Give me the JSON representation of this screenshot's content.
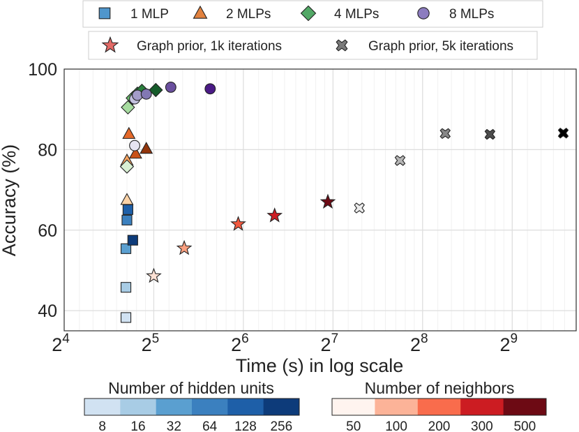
{
  "chart_data": {
    "type": "scatter",
    "xscale": "log2",
    "xlabel": "Time (s) in log scale",
    "ylabel": "Accuracy (%)",
    "xlim": [
      16,
      840
    ],
    "ylim": [
      35,
      100
    ],
    "grid": true,
    "x_ticks": [
      {
        "value": 16,
        "base": "2",
        "exp": "4"
      },
      {
        "value": 32,
        "base": "2",
        "exp": "5"
      },
      {
        "value": 64,
        "base": "2",
        "exp": "6"
      },
      {
        "value": 128,
        "base": "2",
        "exp": "7"
      },
      {
        "value": 256,
        "base": "2",
        "exp": "8"
      },
      {
        "value": 512,
        "base": "2",
        "exp": "9"
      }
    ],
    "y_ticks": [
      {
        "value": 40,
        "label": "40"
      },
      {
        "value": 60,
        "label": "60"
      },
      {
        "value": 80,
        "label": "80"
      },
      {
        "value": 100,
        "label": "100"
      }
    ],
    "legend": {
      "row1": [
        {
          "label": "1 MLP",
          "marker": "square",
          "color": "#4f96cc"
        },
        {
          "label": "2 MLPs",
          "marker": "triangle",
          "color": "#e2823f"
        },
        {
          "label": "4 MLPs",
          "marker": "diamond",
          "color": "#52a866"
        },
        {
          "label": "8 MLPs",
          "marker": "circle",
          "color": "#8c7cbf"
        }
      ],
      "row2": [
        {
          "label": "Graph prior, 1k iterations",
          "marker": "star",
          "color": "#e36a66"
        },
        {
          "label": "Graph prior, 5k iterations",
          "marker": "cross",
          "color": "#7a7a7a"
        }
      ]
    },
    "series": [
      {
        "name": "1 MLP",
        "marker": "square",
        "points": [
          {
            "x": 25.8,
            "y": 38.3,
            "c": "#d1e2f2"
          },
          {
            "x": 25.8,
            "y": 45.8,
            "c": "#a8cce5"
          },
          {
            "x": 25.8,
            "y": 55.4,
            "c": "#5a9fd0"
          },
          {
            "x": 26.0,
            "y": 62.5,
            "c": "#3b80bf"
          },
          {
            "x": 26.2,
            "y": 65.1,
            "c": "#1e5fa8"
          },
          {
            "x": 27.2,
            "y": 57.5,
            "c": "#0d3b7a"
          }
        ]
      },
      {
        "name": "2 MLPs",
        "marker": "triangle",
        "points": [
          {
            "x": 26.0,
            "y": 67.5,
            "c": "#fdd3a7"
          },
          {
            "x": 26.0,
            "y": 77.3,
            "c": "#f5a35f"
          },
          {
            "x": 26.4,
            "y": 83.9,
            "c": "#e5692a"
          },
          {
            "x": 27.8,
            "y": 79.0,
            "c": "#c95218"
          },
          {
            "x": 30.2,
            "y": 80.2,
            "c": "#93360c"
          }
        ]
      },
      {
        "name": "4 MLPs",
        "marker": "diamond",
        "points": [
          {
            "x": 26.0,
            "y": 75.8,
            "c": "#d9f0d3"
          },
          {
            "x": 26.2,
            "y": 90.5,
            "c": "#a7dca0"
          },
          {
            "x": 27.2,
            "y": 92.8,
            "c": "#6cbd6e"
          },
          {
            "x": 28.2,
            "y": 93.9,
            "c": "#3d9950"
          },
          {
            "x": 29.2,
            "y": 94.6,
            "c": "#2a7f3e"
          },
          {
            "x": 32.5,
            "y": 94.8,
            "c": "#155b2a"
          }
        ]
      },
      {
        "name": "8 MLPs",
        "marker": "circle",
        "points": [
          {
            "x": 27.6,
            "y": 81.0,
            "c": "#e6e4f1"
          },
          {
            "x": 27.6,
            "y": 92.6,
            "c": "#c3c1df"
          },
          {
            "x": 28.2,
            "y": 93.5,
            "c": "#a39cc9"
          },
          {
            "x": 30.2,
            "y": 93.8,
            "c": "#8278b3"
          },
          {
            "x": 36.5,
            "y": 95.5,
            "c": "#6a4f9e"
          },
          {
            "x": 49.5,
            "y": 95.1,
            "c": "#4a1a86"
          }
        ]
      },
      {
        "name": "Graph prior, 1k iterations",
        "marker": "star",
        "points": [
          {
            "x": 32.0,
            "y": 48.6,
            "c": "#fde0d3"
          },
          {
            "x": 40.5,
            "y": 55.5,
            "c": "#fba080"
          },
          {
            "x": 61.5,
            "y": 61.5,
            "c": "#f2593f"
          },
          {
            "x": 81.5,
            "y": 63.6,
            "c": "#cc1c22"
          },
          {
            "x": 123.0,
            "y": 67.0,
            "c": "#6d0a14"
          }
        ]
      },
      {
        "name": "Graph prior, 5k iterations",
        "marker": "cross",
        "points": [
          {
            "x": 157.0,
            "y": 65.5,
            "c": "#ececec"
          },
          {
            "x": 215.0,
            "y": 77.3,
            "c": "#b5b5b5"
          },
          {
            "x": 305.0,
            "y": 84.0,
            "c": "#888888"
          },
          {
            "x": 431.0,
            "y": 83.8,
            "c": "#4d4d4d"
          },
          {
            "x": 760.0,
            "y": 84.1,
            "c": "#000000"
          }
        ]
      }
    ],
    "colorbars": [
      {
        "title": "Number of hidden units",
        "colors": [
          "#d1e2f2",
          "#a8cce5",
          "#5a9fd0",
          "#3b80bf",
          "#1e5fa8",
          "#0d3b7a"
        ],
        "labels": [
          "8",
          "16",
          "32",
          "64",
          "128",
          "256"
        ]
      },
      {
        "title": "Number of neighbors",
        "colors": [
          "#fff4ef",
          "#fcb398",
          "#f96c4c",
          "#cc1c22",
          "#6d0a14"
        ],
        "labels": [
          "50",
          "100",
          "200",
          "300",
          "500"
        ]
      }
    ]
  }
}
